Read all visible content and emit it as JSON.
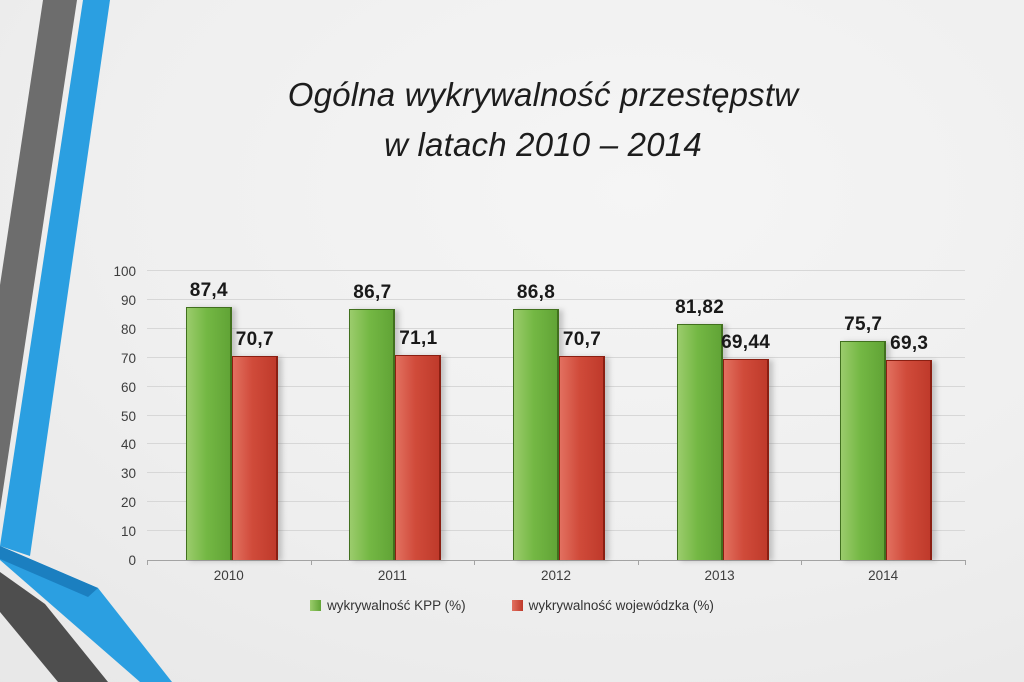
{
  "slide": {
    "title_line1": "Ogólna wykrywalność przestępstw",
    "title_line2": "w latach 2010 – 2014"
  },
  "decor": {
    "stripe_gray_upper": "#6d6d6d",
    "stripe_gray_lower": "#4e4e4e",
    "stripe_blue": "#2b9fe1",
    "stripe_blue_fold": "#1b7fc0"
  },
  "chart_data": {
    "type": "bar",
    "title": "Ogólna wykrywalność przestępstw w latach 2010 – 2014",
    "categories": [
      "2010",
      "2011",
      "2012",
      "2013",
      "2014"
    ],
    "series": [
      {
        "name": "wykrywalność KPP (%)",
        "values": [
          87.4,
          86.7,
          86.8,
          81.82,
          75.7
        ],
        "value_labels": [
          "87,4",
          "86,7",
          "86,8",
          "81,82",
          "75,7"
        ],
        "color": "#74b844",
        "color_light": "#9bcc6c",
        "color_dark": "#61a436",
        "color_edge": "#41701e"
      },
      {
        "name": "wykrywalność wojewódzka (%)",
        "values": [
          70.7,
          71.1,
          70.7,
          69.44,
          69.3
        ],
        "value_labels": [
          "70,7",
          "71,1",
          "70,7",
          "69,44",
          "69,3"
        ],
        "color": "#d04b3a",
        "color_light": "#e27060",
        "color_dark": "#bf3a2b",
        "color_edge": "#8a1f12"
      }
    ],
    "xlabel": "",
    "ylabel": "",
    "ylim": [
      0,
      100
    ],
    "yticks": [
      0,
      10,
      20,
      30,
      40,
      50,
      60,
      70,
      80,
      90,
      100
    ],
    "grid": true,
    "legend_position": "bottom"
  }
}
